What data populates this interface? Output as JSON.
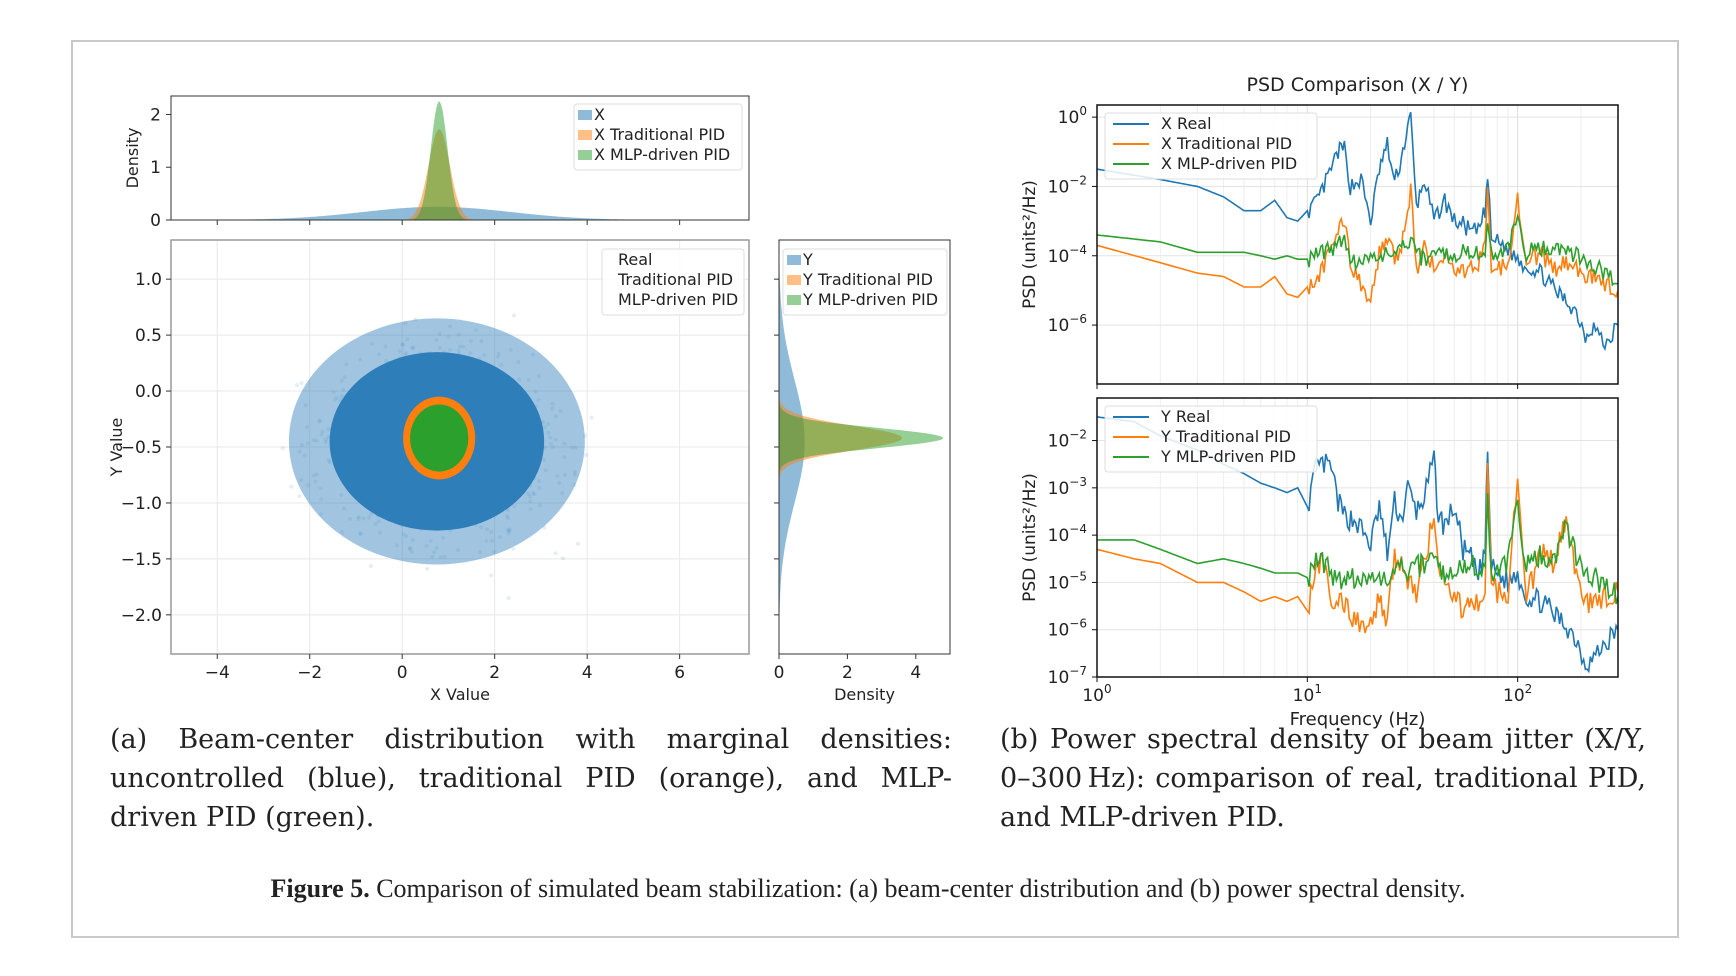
{
  "figure": {
    "label": "Figure 5.",
    "caption": "Comparison of simulated beam stabilization: (a) beam-center distribution and (b) power spectral density."
  },
  "subfigures": {
    "a_caption": "(a) Beam-center distribution with marginal densities: uncontrolled (blue), traditional PID (orange), and MLP-driven PID (green).",
    "b_caption": "(b) Power spectral density of beam jitter (X/Y, 0–300 Hz): comparison of real, traditional PID, and MLP-driven PID."
  },
  "colors": {
    "blue": "#1f77b4",
    "orange": "#ff7f0e",
    "green": "#2ca02c"
  },
  "chart_data": [
    {
      "id": "x-marginal",
      "type": "area",
      "ylabel": "Density",
      "xlim": [
        -5,
        7.5
      ],
      "ylim": [
        0,
        2.35
      ],
      "yticks": [
        0,
        1,
        2
      ],
      "legend": [
        "X",
        "X Traditional  PID",
        "X MLP-driven PID"
      ],
      "legend_position": "top-right",
      "series": [
        {
          "name": "X",
          "mean": 0.75,
          "std": 1.6,
          "peak": 0.25
        },
        {
          "name": "X Traditional  PID",
          "mean": 0.8,
          "std": 0.23,
          "peak": 1.72
        },
        {
          "name": "X MLP-driven PID",
          "mean": 0.8,
          "std": 0.18,
          "peak": 2.25
        }
      ]
    },
    {
      "id": "scatter",
      "type": "scatter",
      "xlabel": "X Value",
      "ylabel": "Y Value",
      "xlim": [
        -5,
        7.5
      ],
      "ylim": [
        -2.35,
        1.35
      ],
      "xticks": [
        -4,
        -2,
        0,
        2,
        4,
        6
      ],
      "yticks": [
        1.0,
        0.5,
        0.0,
        -0.5,
        -1.0,
        -1.5,
        -2.0
      ],
      "xtick_labels": [
        "−4",
        "−2",
        "0",
        "2",
        "4",
        "6"
      ],
      "ytick_labels": [
        "1.0",
        "0.5",
        "0.0",
        "−0.5",
        "−1.0",
        "−1.5",
        "−2.0"
      ],
      "grid": true,
      "legend": [
        "Real",
        "Traditional PID",
        "MLP-driven PID"
      ],
      "legend_position": "top-right",
      "series": [
        {
          "name": "Real",
          "center": [
            0.75,
            -0.45
          ],
          "spread": [
            1.6,
            0.55
          ]
        },
        {
          "name": "Traditional PID",
          "center": [
            0.8,
            -0.42
          ],
          "radius": [
            0.78,
            0.37
          ]
        },
        {
          "name": "MLP-driven PID",
          "center": [
            0.8,
            -0.42
          ],
          "radius": [
            0.63,
            0.3
          ]
        }
      ]
    },
    {
      "id": "y-marginal",
      "type": "area",
      "xlabel": "Density",
      "xlim": [
        0,
        5
      ],
      "xticks": [
        0,
        2,
        4
      ],
      "legend": [
        "Y",
        "Y Traditional PID",
        "Y MLP-driven PID"
      ],
      "legend_position": "top-right",
      "series": [
        {
          "name": "Y",
          "mean": -0.45,
          "std": 0.55,
          "peak": 0.75
        },
        {
          "name": "Y Traditional PID",
          "mean": -0.42,
          "std": 0.11,
          "peak": 3.6
        },
        {
          "name": "Y MLP-driven PID",
          "mean": -0.42,
          "std": 0.09,
          "peak": 4.8
        }
      ]
    },
    {
      "id": "psd-x",
      "type": "line",
      "title": "PSD Comparison (X / Y)",
      "ylabel": "PSD (units²/Hz)",
      "xscale": "log",
      "yscale": "log",
      "xlim": [
        1,
        300
      ],
      "ylim_exp": [
        -7.7,
        0.35
      ],
      "ytick_exps": [
        0,
        -2,
        -4,
        -6
      ],
      "grid": true,
      "legend": [
        "X Real",
        "X Traditional PID",
        "X MLP-driven PID"
      ],
      "legend_position": "top-left",
      "series": [
        {
          "name": "X Real",
          "freq": [
            1,
            2,
            3,
            4,
            5,
            6,
            7,
            8,
            9,
            10,
            11,
            12,
            13,
            14,
            15,
            16,
            18,
            20,
            22,
            24,
            26,
            28,
            30,
            31,
            33,
            36,
            40,
            45,
            50,
            55,
            60,
            65,
            70,
            72,
            75,
            80,
            90,
            100,
            110,
            130,
            150,
            170,
            190,
            210,
            230,
            260,
            300
          ],
          "log_psd": [
            -1.5,
            -1.8,
            -2.0,
            -2.3,
            -2.7,
            -2.7,
            -2.4,
            -2.9,
            -3.0,
            -2.7,
            -2.5,
            -2.0,
            -1.5,
            -1.0,
            -0.9,
            -2.0,
            -1.8,
            -3.0,
            -1.5,
            -0.8,
            -1.9,
            -1.2,
            -0.3,
            0.0,
            -2.6,
            -1.8,
            -3.0,
            -2.4,
            -3.0,
            -3.1,
            -3.3,
            -3.3,
            -2.7,
            -1.7,
            -3.5,
            -3.6,
            -3.8,
            -4.1,
            -4.3,
            -4.5,
            -5.0,
            -5.3,
            -5.6,
            -6.3,
            -6.0,
            -6.6,
            -6.0
          ]
        },
        {
          "name": "X Traditional PID",
          "freq": [
            1,
            2,
            3,
            4,
            5,
            6,
            7,
            8,
            9,
            10,
            11,
            12,
            13,
            14,
            15,
            16,
            18,
            20,
            22,
            24,
            26,
            28,
            30,
            31,
            33,
            36,
            40,
            45,
            50,
            55,
            60,
            65,
            70,
            72,
            75,
            80,
            90,
            100,
            110,
            130,
            150,
            170,
            190,
            210,
            230,
            260,
            300
          ],
          "log_psd": [
            -3.7,
            -4.2,
            -4.5,
            -4.6,
            -4.9,
            -4.9,
            -4.6,
            -5.1,
            -5.2,
            -4.9,
            -4.7,
            -4.3,
            -3.7,
            -3.3,
            -3.0,
            -4.2,
            -4.8,
            -5.3,
            -3.9,
            -3.5,
            -4.1,
            -3.7,
            -2.7,
            -2.0,
            -4.4,
            -3.8,
            -4.3,
            -4.0,
            -4.4,
            -4.5,
            -4.2,
            -4.2,
            -3.6,
            -2.2,
            -4.3,
            -4.4,
            -4.2,
            -2.3,
            -4.1,
            -4.0,
            -4.4,
            -4.2,
            -4.3,
            -4.7,
            -4.6,
            -4.8,
            -5.0
          ]
        },
        {
          "name": "X MLP-driven PID",
          "freq": [
            1,
            2,
            3,
            4,
            5,
            6,
            7,
            8,
            9,
            10,
            11,
            12,
            13,
            14,
            15,
            16,
            18,
            20,
            22,
            24,
            26,
            28,
            30,
            31,
            33,
            36,
            40,
            45,
            50,
            55,
            60,
            65,
            70,
            72,
            75,
            80,
            90,
            100,
            110,
            130,
            150,
            170,
            190,
            210,
            230,
            260,
            300
          ],
          "log_psd": [
            -3.4,
            -3.6,
            -3.9,
            -3.9,
            -3.9,
            -4.0,
            -4.1,
            -4.0,
            -4.1,
            -4.1,
            -4.0,
            -3.9,
            -3.8,
            -3.6,
            -3.4,
            -4.2,
            -4.1,
            -4.0,
            -4.1,
            -3.9,
            -4.0,
            -3.8,
            -3.7,
            -3.5,
            -4.0,
            -4.1,
            -4.0,
            -3.9,
            -4.0,
            -3.9,
            -4.0,
            -3.9,
            -3.8,
            -3.0,
            -4.0,
            -3.9,
            -3.8,
            -3.0,
            -3.9,
            -3.8,
            -3.7,
            -3.9,
            -4.0,
            -4.2,
            -4.3,
            -4.5,
            -4.8
          ]
        }
      ]
    },
    {
      "id": "psd-y",
      "type": "line",
      "xlabel": "Frequency (Hz)",
      "ylabel": "PSD (units²/Hz)",
      "xscale": "log",
      "yscale": "log",
      "xlim": [
        1,
        300
      ],
      "ylim_exp": [
        -7,
        -1.1
      ],
      "ytick_exps": [
        -2,
        -3,
        -4,
        -5,
        -6,
        -7
      ],
      "xtick_exps": [
        0,
        1,
        2
      ],
      "grid": true,
      "legend": [
        "Y Real",
        "Y Traditional PID",
        "Y MLP-driven PID"
      ],
      "legend_position": "top-left",
      "series": [
        {
          "name": "Y Real",
          "freq": [
            1,
            1.5,
            2,
            3,
            4,
            5,
            6,
            7,
            8,
            9,
            10,
            11,
            12,
            13,
            14,
            15,
            17,
            20,
            22,
            24,
            26,
            28,
            30,
            33,
            36,
            40,
            42,
            45,
            50,
            55,
            60,
            65,
            70,
            72,
            75,
            80,
            90,
            100,
            110,
            130,
            150,
            170,
            190,
            210,
            230,
            260,
            300
          ],
          "log_psd": [
            -1.5,
            -1.6,
            -1.9,
            -2.2,
            -2.5,
            -2.7,
            -2.9,
            -3.0,
            -3.1,
            -3.0,
            -3.4,
            -2.6,
            -2.5,
            -2.6,
            -3.3,
            -3.6,
            -3.7,
            -4.2,
            -3.4,
            -4.4,
            -3.3,
            -3.7,
            -3.0,
            -3.5,
            -3.2,
            -2.4,
            -3.6,
            -3.8,
            -3.4,
            -4.3,
            -4.5,
            -4.9,
            -4.3,
            -2.2,
            -4.7,
            -4.8,
            -5.0,
            -4.8,
            -5.3,
            -5.4,
            -5.7,
            -5.9,
            -6.2,
            -6.7,
            -6.6,
            -6.3,
            -6.0
          ]
        },
        {
          "name": "Y Traditional PID",
          "freq": [
            1,
            1.5,
            2,
            3,
            4,
            5,
            6,
            7,
            8,
            9,
            10,
            11,
            12,
            13,
            14,
            15,
            17,
            20,
            22,
            24,
            26,
            28,
            30,
            33,
            36,
            40,
            42,
            45,
            50,
            55,
            60,
            65,
            70,
            72,
            75,
            80,
            90,
            100,
            110,
            130,
            150,
            170,
            190,
            210,
            230,
            260,
            300
          ],
          "log_psd": [
            -4.3,
            -4.5,
            -4.6,
            -5.0,
            -5.0,
            -5.2,
            -5.4,
            -5.3,
            -5.4,
            -5.3,
            -5.6,
            -4.6,
            -4.6,
            -5.5,
            -5.4,
            -5.5,
            -5.8,
            -5.9,
            -5.3,
            -5.9,
            -4.4,
            -4.6,
            -4.9,
            -5.2,
            -4.6,
            -3.5,
            -4.6,
            -5.0,
            -5.3,
            -5.6,
            -5.2,
            -5.5,
            -5.4,
            -2.3,
            -5.0,
            -5.2,
            -5.2,
            -2.6,
            -5.3,
            -4.4,
            -4.6,
            -3.6,
            -4.8,
            -5.5,
            -5.4,
            -5.3,
            -5.2
          ]
        },
        {
          "name": "Y MLP-driven PID",
          "freq": [
            1,
            1.5,
            2,
            3,
            4,
            5,
            6,
            7,
            8,
            9,
            10,
            11,
            12,
            13,
            14,
            15,
            17,
            20,
            22,
            24,
            26,
            28,
            30,
            33,
            36,
            40,
            42,
            45,
            50,
            55,
            60,
            65,
            70,
            72,
            75,
            80,
            90,
            100,
            110,
            130,
            150,
            170,
            190,
            210,
            230,
            260,
            300
          ],
          "log_psd": [
            -4.1,
            -4.1,
            -4.3,
            -4.6,
            -4.5,
            -4.6,
            -4.7,
            -4.8,
            -4.8,
            -4.8,
            -4.9,
            -4.6,
            -4.6,
            -4.8,
            -4.9,
            -4.9,
            -4.9,
            -4.9,
            -4.9,
            -5.0,
            -4.8,
            -4.7,
            -4.8,
            -4.7,
            -4.6,
            -4.5,
            -4.7,
            -4.8,
            -4.7,
            -4.8,
            -4.6,
            -4.7,
            -4.6,
            -3.3,
            -4.8,
            -4.7,
            -4.6,
            -3.3,
            -4.7,
            -4.4,
            -4.5,
            -3.8,
            -4.5,
            -4.8,
            -4.9,
            -5.1,
            -5.3
          ]
        }
      ]
    }
  ]
}
